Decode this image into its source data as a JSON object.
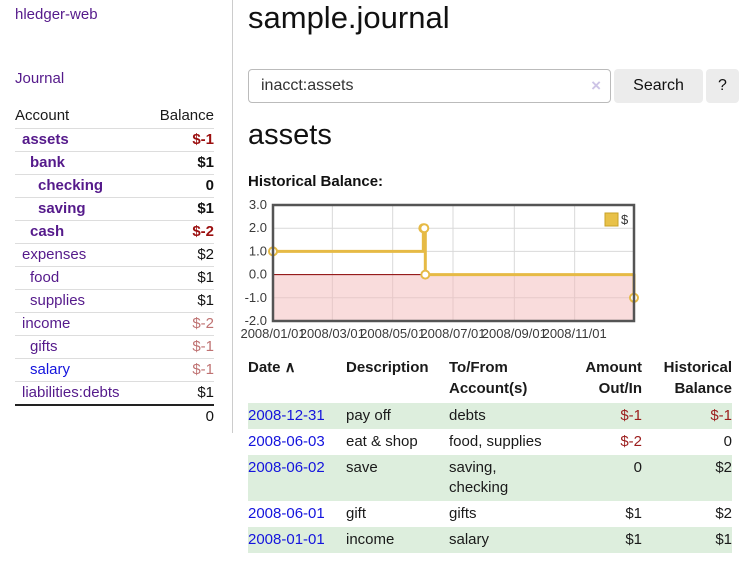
{
  "app": {
    "brand": "hledger-web"
  },
  "colors": {
    "link_visited": "#551a8b",
    "link_unvisited": "#1414dd",
    "negative_strong": "#9b0f0f",
    "negative_muted": "#bf7272",
    "table_negative": "#9b1c1c",
    "row_stripe": "#ddeedd"
  },
  "sidebar": {
    "nav": [
      {
        "label": "Journal"
      }
    ],
    "accounts_table": {
      "headers": {
        "account": "Account",
        "balance": "Balance"
      },
      "rows": [
        {
          "name": "assets",
          "depth": 1,
          "bold": true,
          "balance": "$-1",
          "negative": true
        },
        {
          "name": "bank",
          "depth": 2,
          "bold": true,
          "balance": "$1",
          "negative": false
        },
        {
          "name": "checking",
          "depth": 3,
          "bold": true,
          "balance": "0",
          "negative": false
        },
        {
          "name": "saving",
          "depth": 3,
          "bold": true,
          "balance": "$1",
          "negative": false
        },
        {
          "name": "cash",
          "depth": 2,
          "bold": true,
          "balance": "$-2",
          "negative": true
        },
        {
          "name": "expenses",
          "depth": 1,
          "bold": false,
          "balance": "$2",
          "negative": false
        },
        {
          "name": "food",
          "depth": 2,
          "bold": false,
          "balance": "$1",
          "negative": false
        },
        {
          "name": "supplies",
          "depth": 2,
          "bold": false,
          "balance": "$1",
          "negative": false
        },
        {
          "name": "income",
          "depth": 1,
          "bold": false,
          "balance": "$-2",
          "negative": true
        },
        {
          "name": "gifts",
          "depth": 2,
          "bold": false,
          "balance": "$-1",
          "negative": true
        },
        {
          "name": "salary",
          "depth": 2,
          "bold": false,
          "balance": "$-1",
          "negative": true,
          "unvisited": true
        },
        {
          "name": "liabilities:debts",
          "depth": 1,
          "bold": false,
          "balance": "$1",
          "negative": false
        }
      ],
      "total": "0"
    }
  },
  "header": {
    "title": "sample.journal"
  },
  "search": {
    "query": "inacct:assets",
    "clear_icon": "×",
    "button_label": "Search",
    "help_label": "?"
  },
  "account_page": {
    "heading": "assets",
    "chart_label": "Historical Balance:"
  },
  "chart_data": {
    "type": "line",
    "title": "Historical Balance",
    "style": "steps",
    "series": [
      {
        "name": "$",
        "color": "#e6ba45",
        "points": [
          [
            "2008-01-01",
            1
          ],
          [
            "2008-06-01",
            2
          ],
          [
            "2008-06-02",
            2
          ],
          [
            "2008-06-03",
            0
          ],
          [
            "2008-12-31",
            -1
          ]
        ]
      }
    ],
    "xlim": [
      "2008-01-01",
      "2008-12-31"
    ],
    "ylim": [
      -2,
      3
    ],
    "xticks": [
      "2008/01/01",
      "2008/03/01",
      "2008/05/01",
      "2008/07/01",
      "2008/09/01",
      "2008/11/01"
    ],
    "yticks": [
      "3.0",
      "2.0",
      "1.0",
      "0.0",
      "-1.0",
      "-2.0"
    ],
    "grid": true,
    "legend": {
      "label": "$",
      "position": "top-right",
      "box_color": "#e8c149"
    },
    "colors": {
      "grid": "#d9d9d9",
      "border": "#545454",
      "negative_region": "#f4b9b9",
      "zero_line": "#8b0000",
      "tick_text": "#3a3a3a"
    }
  },
  "register_table": {
    "headers": [
      {
        "lines": [
          "Date"
        ],
        "sort_icon": "∧",
        "align": "left"
      },
      {
        "lines": [
          "Description"
        ],
        "align": "left"
      },
      {
        "lines": [
          "To/From",
          "Account(s)"
        ],
        "align": "left"
      },
      {
        "lines": [
          "Amount",
          "Out/In"
        ],
        "align": "right"
      },
      {
        "lines": [
          "Historical",
          "Balance"
        ],
        "align": "right"
      }
    ],
    "rows": [
      {
        "date": "2008-12-31",
        "description": "pay off",
        "accounts": "debts",
        "amount": "$-1",
        "amount_neg": true,
        "balance": "$-1",
        "balance_neg": true
      },
      {
        "date": "2008-06-03",
        "description": "eat & shop",
        "accounts": "food, supplies",
        "amount": "$-2",
        "amount_neg": true,
        "balance": "0",
        "balance_neg": false
      },
      {
        "date": "2008-06-02",
        "description": "save",
        "accounts": "saving, checking",
        "amount": "0",
        "amount_neg": false,
        "balance": "$2",
        "balance_neg": false
      },
      {
        "date": "2008-06-01",
        "description": "gift",
        "accounts": "gifts",
        "amount": "$1",
        "amount_neg": false,
        "balance": "$2",
        "balance_neg": false
      },
      {
        "date": "2008-01-01",
        "description": "income",
        "accounts": "salary",
        "amount": "$1",
        "amount_neg": false,
        "balance": "$1",
        "balance_neg": false
      }
    ]
  }
}
